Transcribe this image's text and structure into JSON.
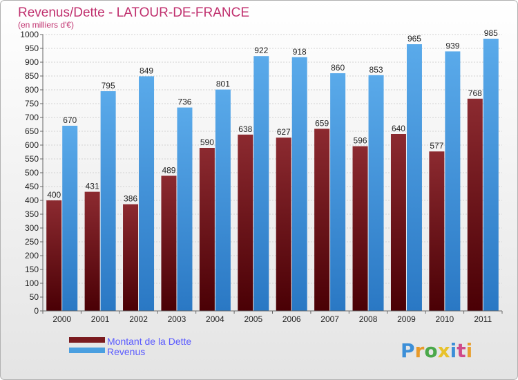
{
  "chart_data": {
    "type": "bar",
    "title": "Revenus/Dette - LATOUR-DE-FRANCE",
    "subtitle": "(en milliers d'€)",
    "categories": [
      "2000",
      "2001",
      "2002",
      "2003",
      "2004",
      "2005",
      "2006",
      "2007",
      "2008",
      "2009",
      "2010",
      "2011"
    ],
    "series": [
      {
        "name": "Montant de la Dette",
        "values": [
          400,
          431,
          386,
          489,
          590,
          638,
          627,
          659,
          596,
          640,
          577,
          768
        ],
        "color": "#7a1a1e"
      },
      {
        "name": "Revenus",
        "values": [
          670,
          795,
          849,
          736,
          801,
          922,
          918,
          860,
          853,
          965,
          939,
          985
        ],
        "color": "#4a9fe0"
      }
    ],
    "ylim": [
      0,
      1000
    ],
    "ytick_step": 50,
    "grid": true,
    "legend_position": "bottom-left"
  },
  "colors": {
    "background_top": "#ffffff",
    "background_bottom": "#e4e4e4",
    "title": "#c0306e",
    "legend_text": "#5a5aff",
    "axis": "#666666"
  },
  "branding": {
    "logo_text": "Proxiti"
  }
}
